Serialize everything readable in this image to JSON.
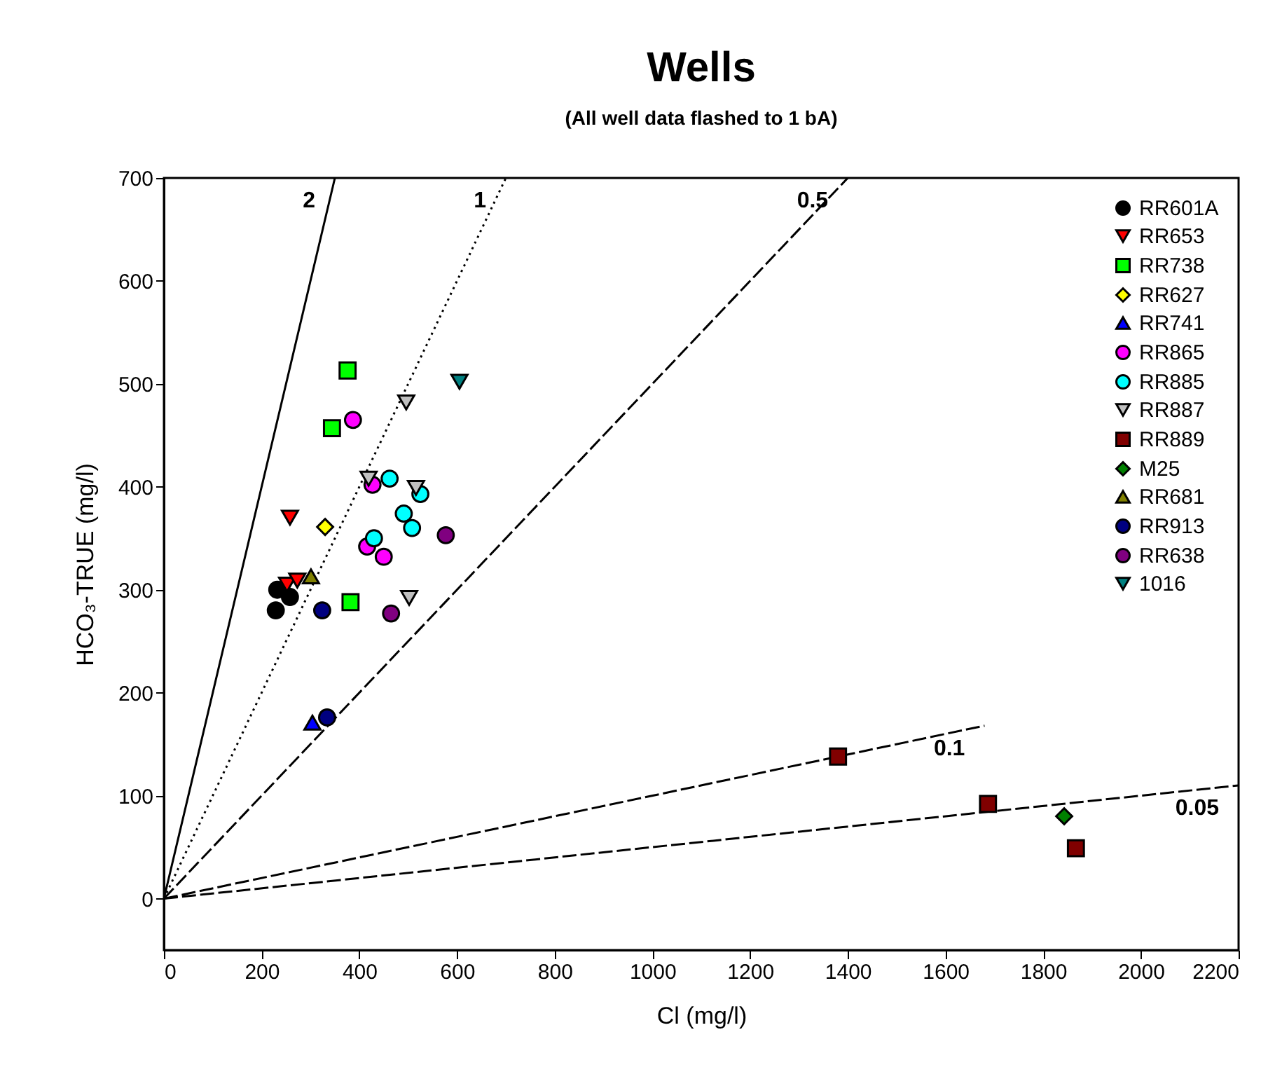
{
  "chart_data": {
    "type": "scatter",
    "title": "Wells",
    "subtitle": "(All well data flashed to 1 bA)",
    "xlabel": "Cl (mg/l)",
    "ylabel": "HCO₃-TRUE (mg/l)",
    "xlim": [
      0,
      2200
    ],
    "xticks": [
      0,
      200,
      400,
      600,
      800,
      1000,
      1200,
      1400,
      1600,
      1800,
      2000,
      2200
    ],
    "ylim": [
      -50,
      700
    ],
    "yticks": [
      0,
      100,
      200,
      300,
      400,
      500,
      600,
      700
    ],
    "grid": false,
    "legend": "top right",
    "series": [
      {
        "name": "RR601A",
        "color": "#000000",
        "marker": "circle",
        "x": [
          232,
          258,
          229
        ],
        "values": [
          300,
          293,
          280
        ]
      },
      {
        "name": "RR653",
        "color": "#ff0000",
        "marker": "triangle-down",
        "x": [
          258,
          252,
          273
        ],
        "values": [
          370,
          305,
          309
        ]
      },
      {
        "name": "RR738",
        "color": "#00ff00",
        "marker": "square",
        "x": [
          376,
          344,
          382
        ],
        "values": [
          513,
          457,
          288
        ]
      },
      {
        "name": "RR627",
        "color": "#ffff00",
        "marker": "diamond",
        "x": [
          330
        ],
        "values": [
          361
        ]
      },
      {
        "name": "RR741",
        "color": "#0000ff",
        "marker": "triangle",
        "x": [
          304
        ],
        "values": [
          171
        ]
      },
      {
        "name": "RR865",
        "color": "#ff00ff",
        "x": [
          387,
          427,
          416,
          450
        ],
        "values": [
          465,
          402,
          342,
          332
        ]
      },
      {
        "name": "RR885",
        "color": "#00ffff",
        "marker": "circle",
        "x": [
          462,
          491,
          508,
          430,
          525
        ],
        "values": [
          408,
          374,
          360,
          350,
          393
        ]
      },
      {
        "name": "RR887",
        "color": "#c0c0c0",
        "marker": "triangle-down",
        "x": [
          496,
          419,
          516,
          502
        ],
        "values": [
          482,
          408,
          399,
          292
        ]
      },
      {
        "name": "RR889",
        "color": "#800000",
        "marker": "square",
        "x": [
          1380,
          1687,
          1867
        ],
        "values": [
          138,
          92,
          49
        ]
      },
      {
        "name": "M25",
        "color": "#008000",
        "marker": "diamond",
        "x": [
          1843
        ],
        "values": [
          80
        ]
      },
      {
        "name": "RR681",
        "color": "#808000",
        "marker": "triangle",
        "x": [
          301
        ],
        "values": [
          313
        ]
      },
      {
        "name": "RR913",
        "color": "#000080",
        "x": [
          334,
          324
        ],
        "values": [
          176,
          280
        ]
      },
      {
        "name": "RR638",
        "color": "#800080",
        "marker": "circle",
        "x": [
          577,
          465
        ],
        "values": [
          353,
          277
        ]
      },
      {
        "name": "1016",
        "color": "#008080",
        "marker": "triangle-down",
        "x": [
          605
        ],
        "values": [
          502
        ]
      },
      {
        "name": "2",
        "type": "line",
        "color": "#000000",
        "line_style": "solid",
        "x": [
          0,
          350
        ],
        "values": [
          0,
          700
        ]
      },
      {
        "name": "1",
        "type": "line",
        "color": "#000000",
        "line_style": "dotted",
        "x": [
          0,
          700
        ],
        "values": [
          0,
          700
        ]
      },
      {
        "name": "0.5",
        "type": "line",
        "color": "#000000",
        "line_style": "dashed",
        "x": [
          0,
          1400
        ],
        "values": [
          0,
          700
        ]
      },
      {
        "name": "0.1",
        "type": "line",
        "color": "#000000",
        "line_style": "dashed",
        "x": [
          0,
          1680
        ],
        "values": [
          0,
          168
        ]
      },
      {
        "name": "0.05",
        "type": "line",
        "color": "#000000",
        "line_style": "dashed",
        "x": [
          0,
          2200
        ],
        "values": [
          0,
          110
        ]
      }
    ]
  }
}
